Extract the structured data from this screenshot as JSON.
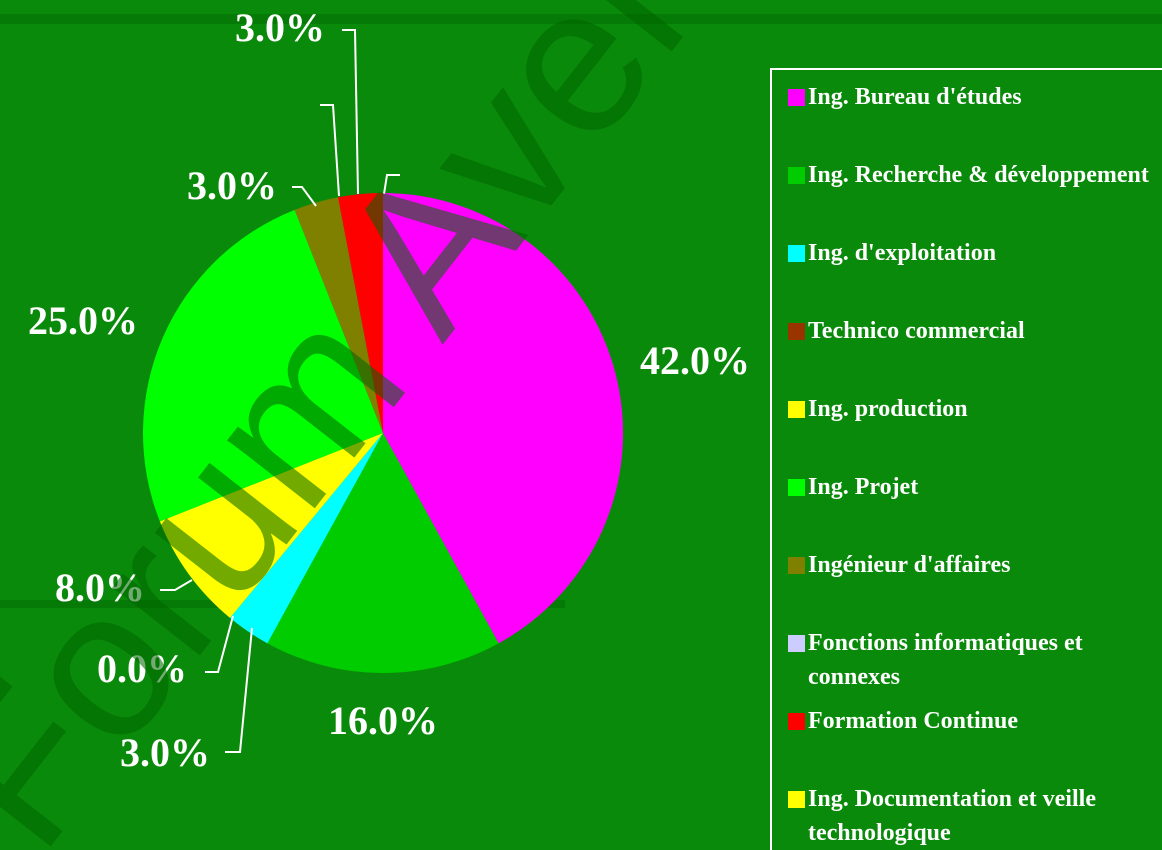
{
  "chart_data": {
    "type": "pie",
    "watermark": "Forum Avenirs",
    "categories": [
      "Ing. Bureau d'études",
      "Ing. Recherche & développement",
      "Ing. d'exploitation",
      "Technico commercial",
      "Ing. production",
      "Ing. Projet",
      "Ingénieur d'affaires",
      "Fonctions informatiques et connexes",
      "Formation Continue",
      "Ing. Documentation et veille technologique"
    ],
    "values": [
      42,
      16,
      3,
      0,
      8,
      25,
      3,
      0,
      3,
      0
    ],
    "value_labels": [
      "42.0%",
      "16.0%",
      "3.0%",
      "0.0%",
      "8.0%",
      "25.0%",
      "3.0%",
      null,
      "3.0%",
      null
    ],
    "colors": [
      "#ff00ff",
      "#00cc00",
      "#00ffff",
      "#993300",
      "#ffff00",
      "#00ff00",
      "#808000",
      "#ccccff",
      "#ff0000",
      "#ffff00"
    ],
    "legend": "right"
  }
}
